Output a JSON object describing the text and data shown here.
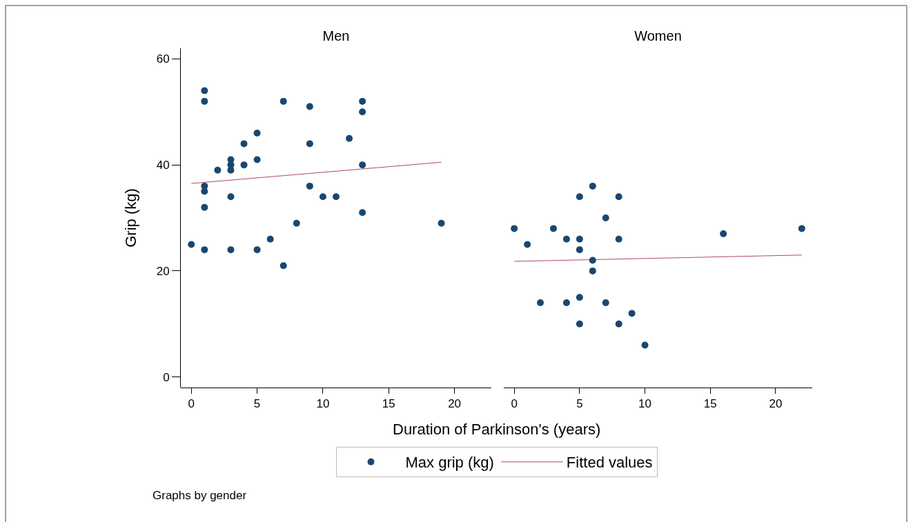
{
  "chart_data": [
    {
      "type": "scatter",
      "title": "Men",
      "xlabel": "Duration of Parkinson's (years)",
      "ylabel": "Grip (kg)",
      "annotations": [
        "Graphs by gender"
      ],
      "xlim": [
        -0.8,
        22.8
      ],
      "xticks": [
        0,
        5,
        10,
        15,
        20
      ],
      "ylim": [
        -2,
        62
      ],
      "yticks": [
        0,
        20,
        40,
        60
      ],
      "grid": false,
      "legend": "bottom",
      "marker": "circle",
      "series": [
        {
          "name": "Max grip (kg)",
          "color": "#1a476f",
          "x": [
            0,
            1,
            1,
            1,
            1,
            1,
            1,
            2,
            3,
            3,
            3,
            3,
            3,
            4,
            4,
            5,
            5,
            5,
            6,
            7,
            7,
            8,
            9,
            9,
            9,
            10,
            11,
            12,
            13,
            13,
            13,
            13,
            19
          ],
          "values": [
            25,
            54,
            52,
            36,
            35,
            32,
            24,
            39,
            41,
            40,
            39,
            34,
            24,
            44,
            40,
            46,
            41,
            24,
            26,
            52,
            21,
            29,
            51,
            44,
            36,
            34,
            34,
            45,
            52,
            50,
            40,
            31,
            29
          ]
        },
        {
          "name": "Fitted values",
          "type": "line",
          "marker": "none",
          "color": "#9b1c31",
          "line_style": "solid",
          "x": [
            0,
            19
          ],
          "values": [
            36.5,
            40.5
          ]
        }
      ]
    },
    {
      "type": "scatter",
      "title": "Women",
      "xlim": [
        -0.8,
        22.8
      ],
      "xticks": [
        0,
        5,
        10,
        15,
        20
      ],
      "ylim": [
        0,
        60
      ],
      "yticks": [
        0,
        20,
        40,
        60
      ],
      "grid": false,
      "tick_labels": "x",
      "marker": "circle",
      "series": [
        {
          "color": "#1a476f",
          "x": [
            0,
            1,
            2,
            3,
            4,
            4,
            5,
            5,
            5,
            5,
            5,
            6,
            6,
            6,
            7,
            7,
            8,
            8,
            8,
            9,
            10,
            16,
            22
          ],
          "values": [
            28,
            25,
            14,
            28,
            26,
            14,
            34,
            26,
            24,
            15,
            10,
            36,
            22,
            20,
            30,
            14,
            34,
            26,
            10,
            12,
            6,
            27,
            28
          ]
        },
        {
          "type": "line",
          "marker": "none",
          "color": "#9b1c31",
          "line_style": "solid",
          "x": [
            0,
            22
          ],
          "values": [
            21.8,
            23
          ]
        }
      ]
    }
  ]
}
